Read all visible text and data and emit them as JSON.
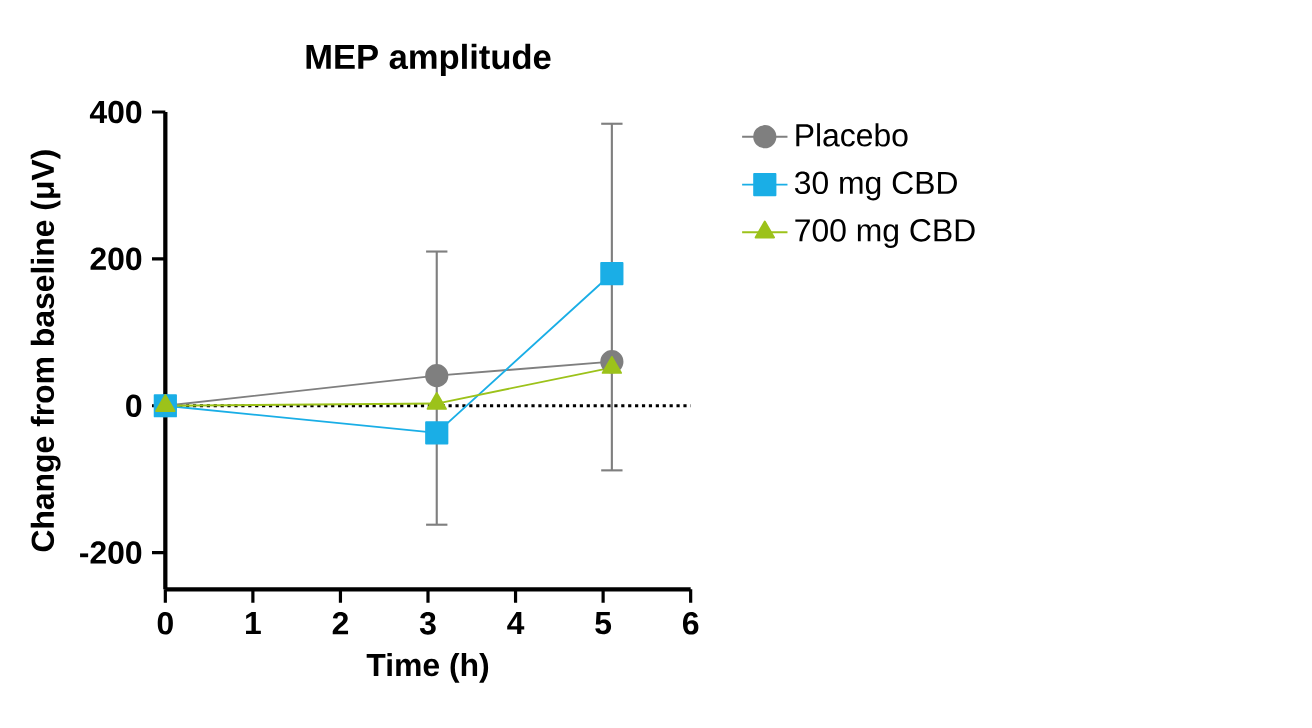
{
  "chart_data": {
    "type": "line",
    "title": "MEP amplitude",
    "xlabel": "Time (h)",
    "ylabel": "Change from baseline (μV)",
    "x": [
      0,
      3.1,
      5.1
    ],
    "series": [
      {
        "name": "Placebo",
        "color": "#7f7f7f",
        "marker": "circle",
        "values": [
          0,
          41,
          60
        ],
        "errors": [
          null,
          [
            -162,
            210
          ],
          [
            -88,
            384
          ]
        ]
      },
      {
        "name": "30 mg CBD",
        "color": "#1aaee6",
        "marker": "square",
        "values": [
          0,
          -37,
          180
        ]
      },
      {
        "name": "700 mg CBD",
        "color": "#9cc21a",
        "marker": "triangle",
        "values": [
          0,
          3,
          52
        ]
      }
    ],
    "xlim": [
      0,
      6
    ],
    "xticks": [
      0,
      1,
      2,
      3,
      4,
      5,
      6
    ],
    "ylim": [
      -250,
      400
    ],
    "yticks": [
      -200,
      0,
      200,
      400
    ],
    "ref_lines": [
      {
        "axis": "y",
        "value": 0,
        "color": "#000000",
        "line_style": "dotted"
      }
    ],
    "legend": "right",
    "grid": false
  }
}
